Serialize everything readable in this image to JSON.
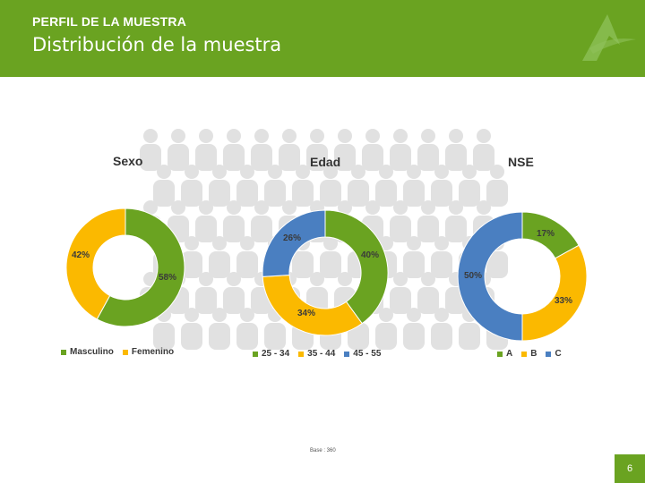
{
  "header": {
    "kicker": "PERFIL DE LA MUESTRA",
    "title": "Distribución de la muestra"
  },
  "footer": {
    "base": "Base : 360",
    "page_number": "6"
  },
  "colors": {
    "brand_green": "#6aa321",
    "green": "#6aa321",
    "yellow": "#fbb900",
    "blue": "#4a7fc1"
  },
  "chart_data": [
    {
      "type": "pie",
      "title": "Sexo",
      "categories": [
        "Masculino",
        "Femenino"
      ],
      "values": [
        58,
        42
      ],
      "labels": [
        "58%",
        "42%"
      ],
      "colors": [
        "#6aa321",
        "#fbb900"
      ],
      "legend": "bottom"
    },
    {
      "type": "pie",
      "title": "Edad",
      "categories": [
        "25 - 34",
        "35 - 44",
        "45 - 55"
      ],
      "values": [
        40,
        34,
        26
      ],
      "labels": [
        "40%",
        "34%",
        "26%"
      ],
      "colors": [
        "#6aa321",
        "#fbb900",
        "#4a7fc1"
      ],
      "legend": "bottom"
    },
    {
      "type": "pie",
      "title": "NSE",
      "categories": [
        "A",
        "B",
        "C"
      ],
      "values": [
        17,
        33,
        50
      ],
      "labels": [
        "17%",
        "33%",
        "50%"
      ],
      "colors": [
        "#6aa321",
        "#fbb900",
        "#4a7fc1"
      ],
      "legend": "bottom"
    }
  ]
}
